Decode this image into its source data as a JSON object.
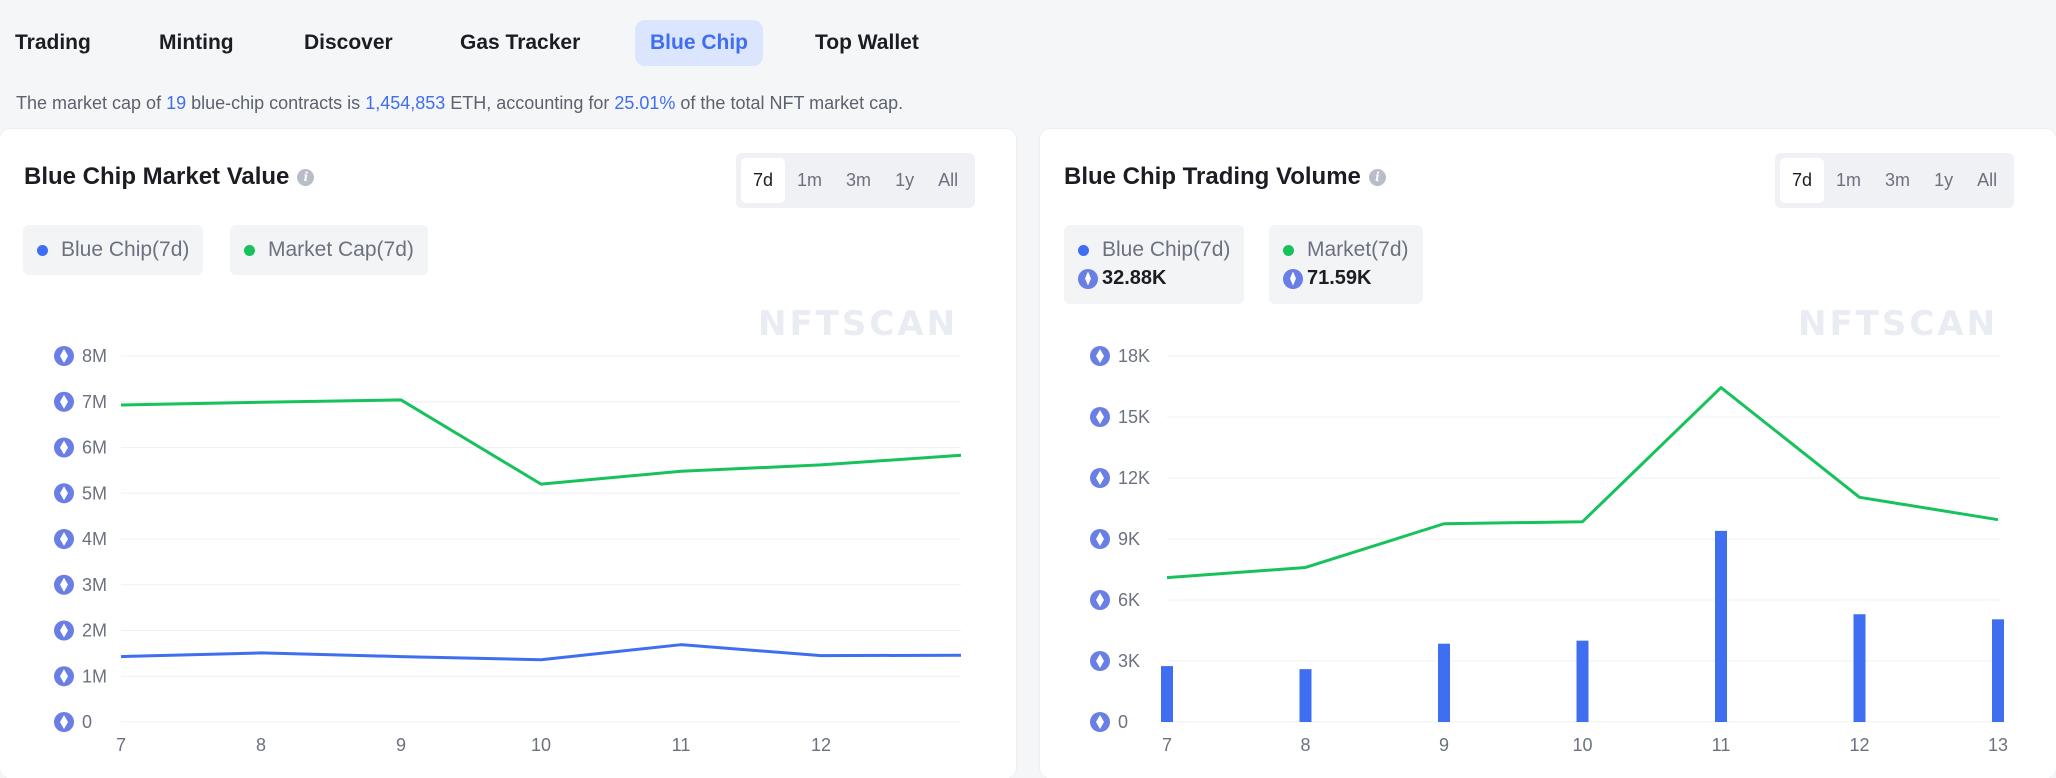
{
  "tabs": [
    {
      "label": "Trading",
      "active": false
    },
    {
      "label": "Minting",
      "active": false
    },
    {
      "label": "Discover",
      "active": false
    },
    {
      "label": "Gas Tracker",
      "active": false
    },
    {
      "label": "Blue Chip",
      "active": true
    },
    {
      "label": "Top Wallet",
      "active": false
    }
  ],
  "summary": {
    "prefix": "The market cap of ",
    "contracts": "19",
    "mid1": " blue-chip contracts is ",
    "market_cap": "1,454,853",
    "mid2": " ETH, accounting for ",
    "share": "25.01%",
    "suffix": " of the total NFT market cap."
  },
  "ranges": [
    "7d",
    "1m",
    "3m",
    "1y",
    "All"
  ],
  "selected_range": "7d",
  "watermark": "NFTSCAN",
  "colors": {
    "accent": "#3f6ef0",
    "bluechip": "#3f6ef0",
    "market": "#17c25c"
  },
  "market_value": {
    "title": "Blue Chip Market Value",
    "legend": [
      {
        "label": "Blue Chip(7d)",
        "color": "#3f6ef0"
      },
      {
        "label": "Market Cap(7d)",
        "color": "#17c25c"
      }
    ]
  },
  "trading_volume": {
    "title": "Blue Chip Trading Volume",
    "legend": [
      {
        "label": "Blue Chip(7d)",
        "value": "32.88K",
        "color": "#3f6ef0"
      },
      {
        "label": "Market(7d)",
        "value": "71.59K",
        "color": "#17c25c"
      }
    ]
  },
  "chart_data": [
    {
      "type": "line",
      "title": "Blue Chip Market Value",
      "x": [
        7,
        8,
        9,
        10,
        11,
        12,
        13
      ],
      "x_tick_labels": [
        "7",
        "8",
        "9",
        "10",
        "11",
        "12"
      ],
      "y_tick_labels": [
        "0",
        "1M",
        "2M",
        "3M",
        "4M",
        "5M",
        "6M",
        "7M",
        "8M"
      ],
      "ylim": [
        0,
        8000000
      ],
      "grid": true,
      "series": [
        {
          "name": "Market Cap(7d)",
          "color": "#17c25c",
          "values": [
            6930000,
            6990000,
            7040000,
            5200000,
            5480000,
            5620000,
            5830000
          ]
        },
        {
          "name": "Blue Chip(7d)",
          "color": "#3f6ef0",
          "values": [
            1430000,
            1510000,
            1430000,
            1360000,
            1690000,
            1450000,
            1460000
          ]
        }
      ]
    },
    {
      "type": "bar+line",
      "title": "Blue Chip Trading Volume",
      "x": [
        7,
        8,
        9,
        10,
        11,
        12,
        13
      ],
      "x_tick_labels": [
        "7",
        "8",
        "9",
        "10",
        "11",
        "12",
        "13"
      ],
      "y_tick_labels": [
        "0",
        "3K",
        "6K",
        "9K",
        "12K",
        "15K",
        "18K"
      ],
      "ylim": [
        0,
        18000
      ],
      "grid": true,
      "series": [
        {
          "name": "Blue Chip(7d)",
          "kind": "bar",
          "color": "#3f6ef0",
          "values": [
            2750,
            2600,
            3850,
            4000,
            9400,
            5300,
            5050
          ]
        },
        {
          "name": "Market(7d)",
          "kind": "line",
          "color": "#17c25c",
          "values": [
            7100,
            7600,
            9750,
            9850,
            16450,
            11050,
            9950
          ]
        }
      ]
    }
  ]
}
